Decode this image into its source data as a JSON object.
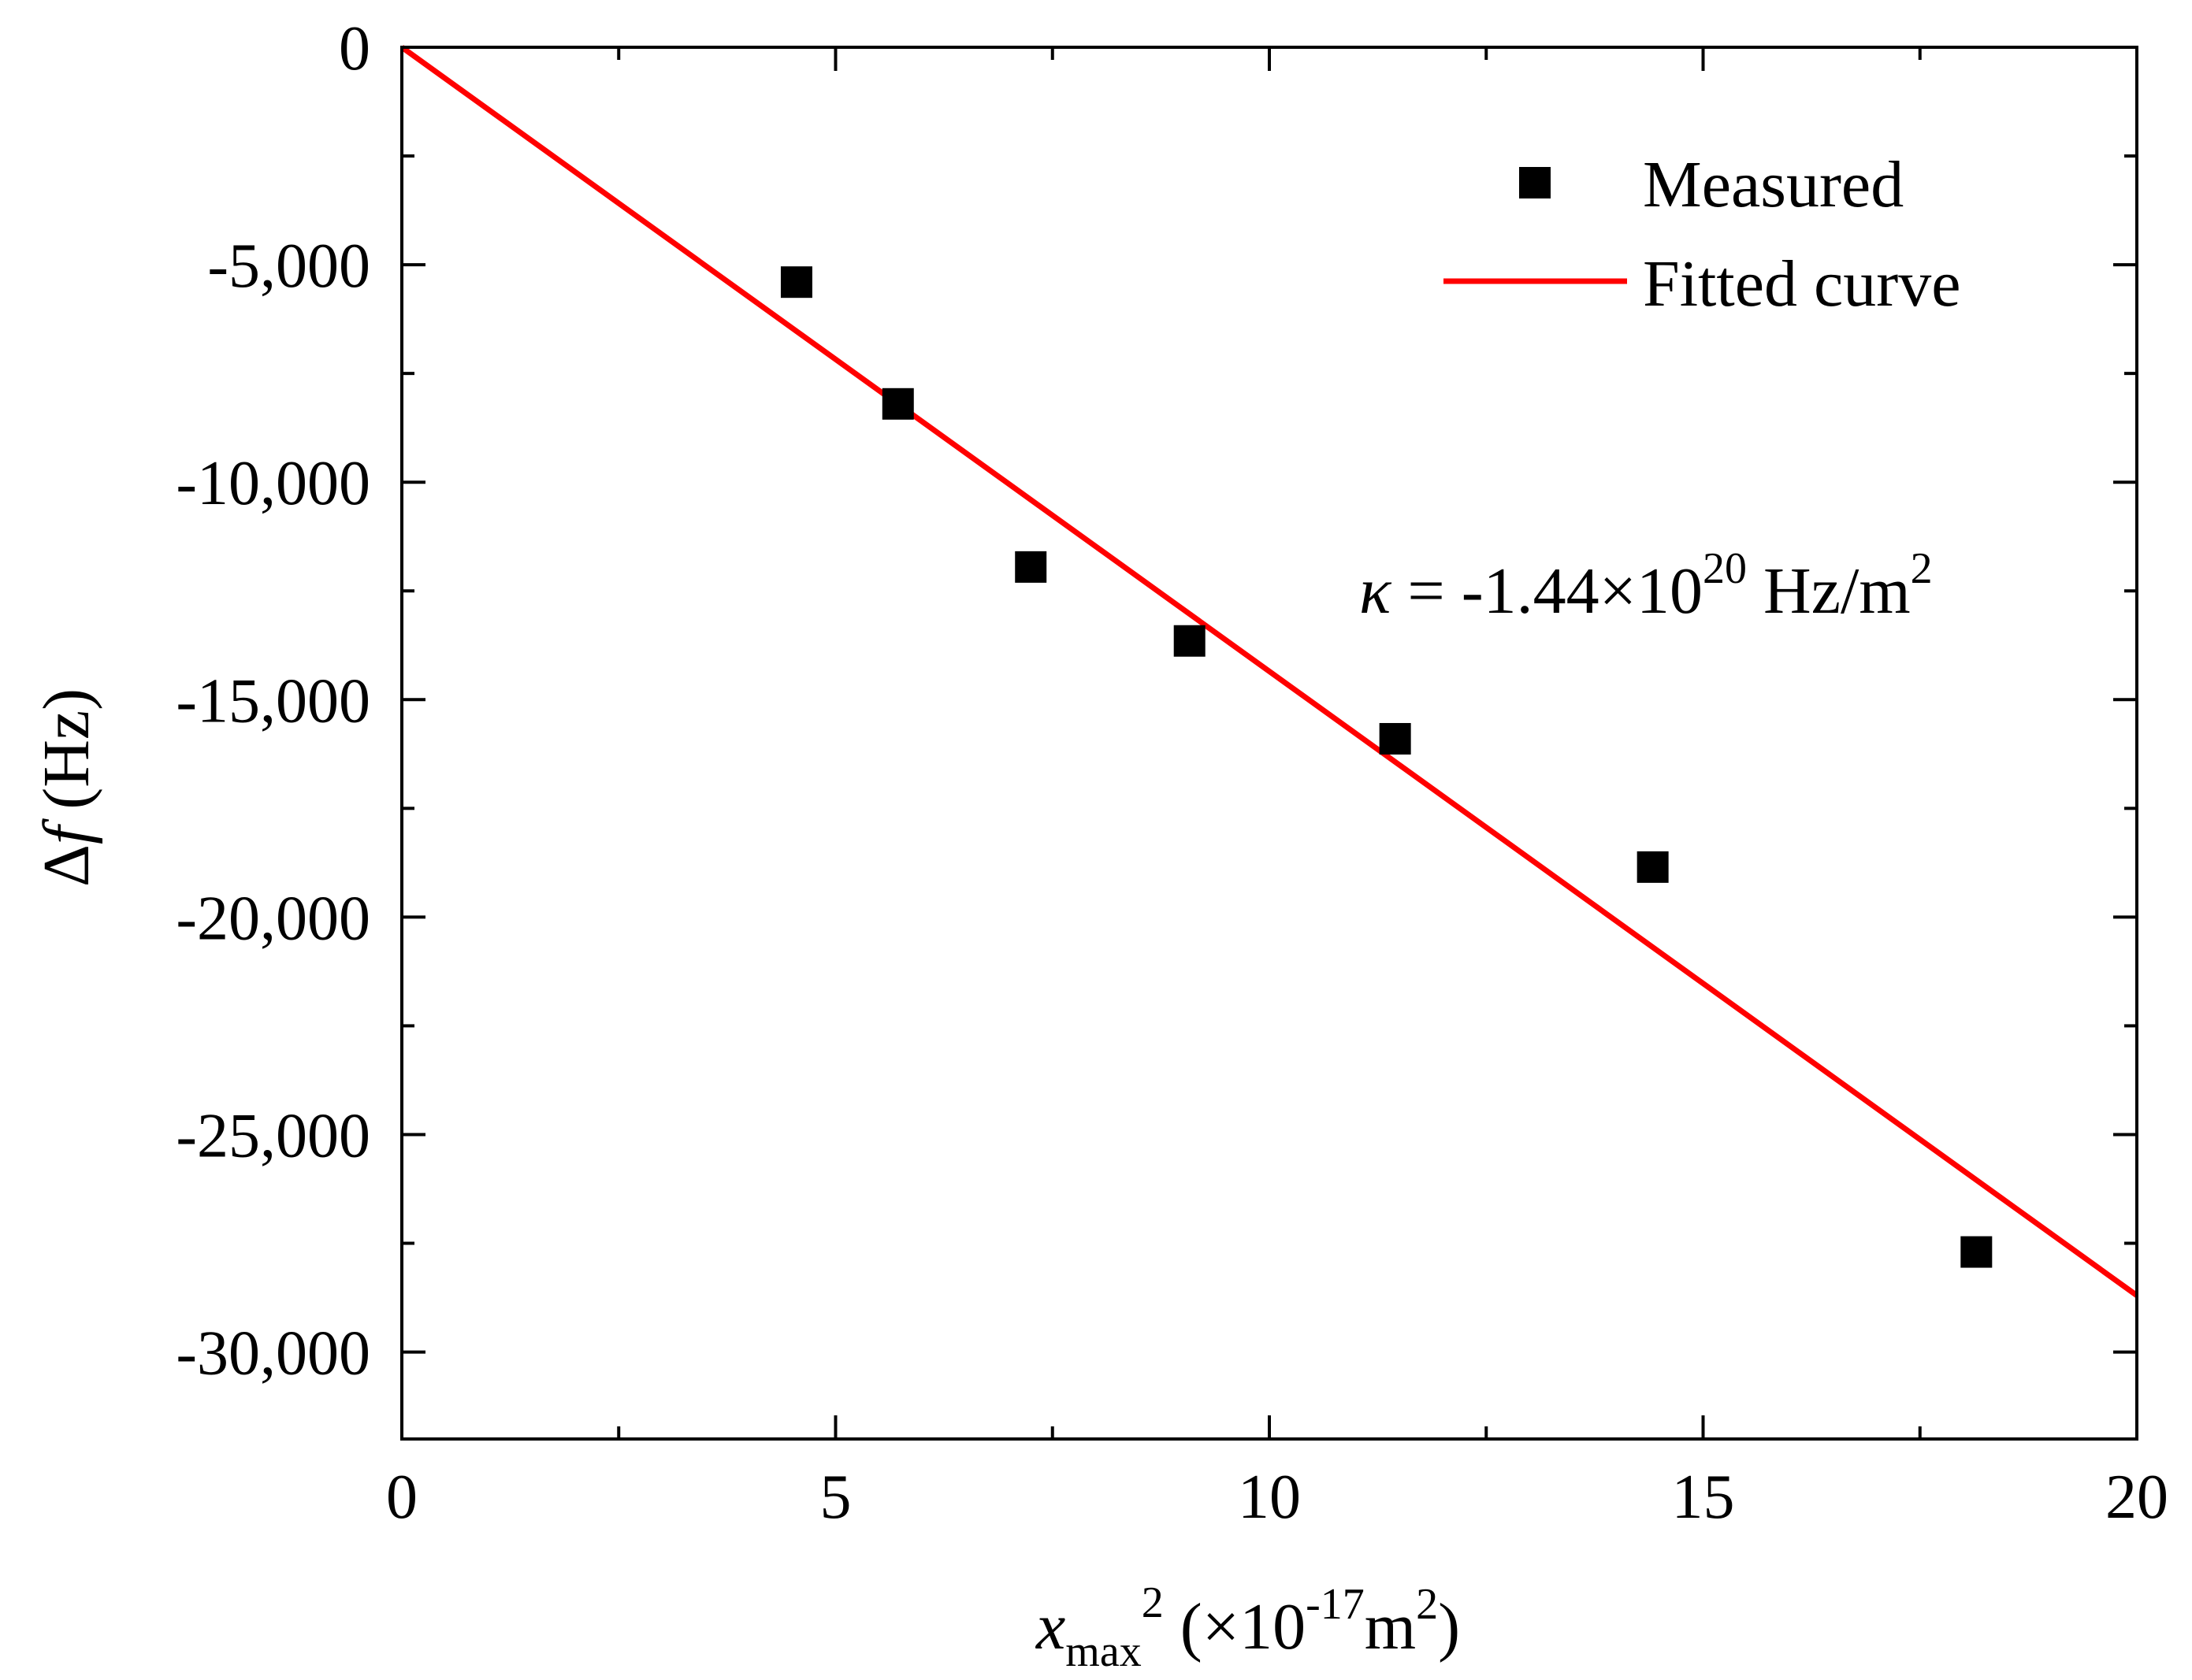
{
  "chart_data": {
    "type": "scatter",
    "title": "",
    "xlabel": {
      "var": "x",
      "subscript": "max",
      "power": "2",
      "unit_open": " (×10",
      "unit_exp": "-17",
      "unit_mid": "m",
      "unit_exp2": "2",
      "unit_close": ")"
    },
    "ylabel": {
      "delta": "Δ",
      "var": "f",
      "unit": " (Hz)"
    },
    "xlim": [
      0,
      20
    ],
    "ylim": [
      -32000,
      0
    ],
    "x_ticks": [
      0,
      5,
      10,
      15,
      20
    ],
    "x_tick_labels": [
      "0",
      "5",
      "10",
      "15",
      "20"
    ],
    "x_minor_ticks": [
      2.5,
      7.5,
      12.5,
      17.5
    ],
    "y_ticks": [
      0,
      -5000,
      -10000,
      -15000,
      -20000,
      -25000,
      -30000
    ],
    "y_tick_labels": [
      "0",
      "-5,000",
      "-10,000",
      "-15,000",
      "-20,000",
      "-25,000",
      "-30,000"
    ],
    "y_minor_ticks": [
      -2500,
      -7500,
      -12500,
      -17500,
      -22500,
      -27500
    ],
    "grid": false,
    "series": [
      {
        "name": "Measured",
        "kind": "scatter",
        "marker": "square",
        "color": "#000000",
        "x": [
          4.55,
          5.72,
          7.25,
          9.08,
          11.45,
          14.42,
          18.15
        ],
        "y": [
          -5400,
          -8200,
          -11950,
          -13650,
          -15900,
          -18850,
          -27700
        ]
      },
      {
        "name": "Fitted curve",
        "kind": "line",
        "color": "#ff0000",
        "x": [
          0,
          20
        ],
        "y": [
          0,
          -28700
        ]
      }
    ],
    "legend": {
      "position": "top-right",
      "entries": [
        "Measured",
        "Fitted curve"
      ]
    },
    "annotation": {
      "symbol": "κ",
      "text": " = -1.44×10",
      "exponent": "20",
      "unit": " Hz/m",
      "unit_exponent": "2"
    }
  }
}
